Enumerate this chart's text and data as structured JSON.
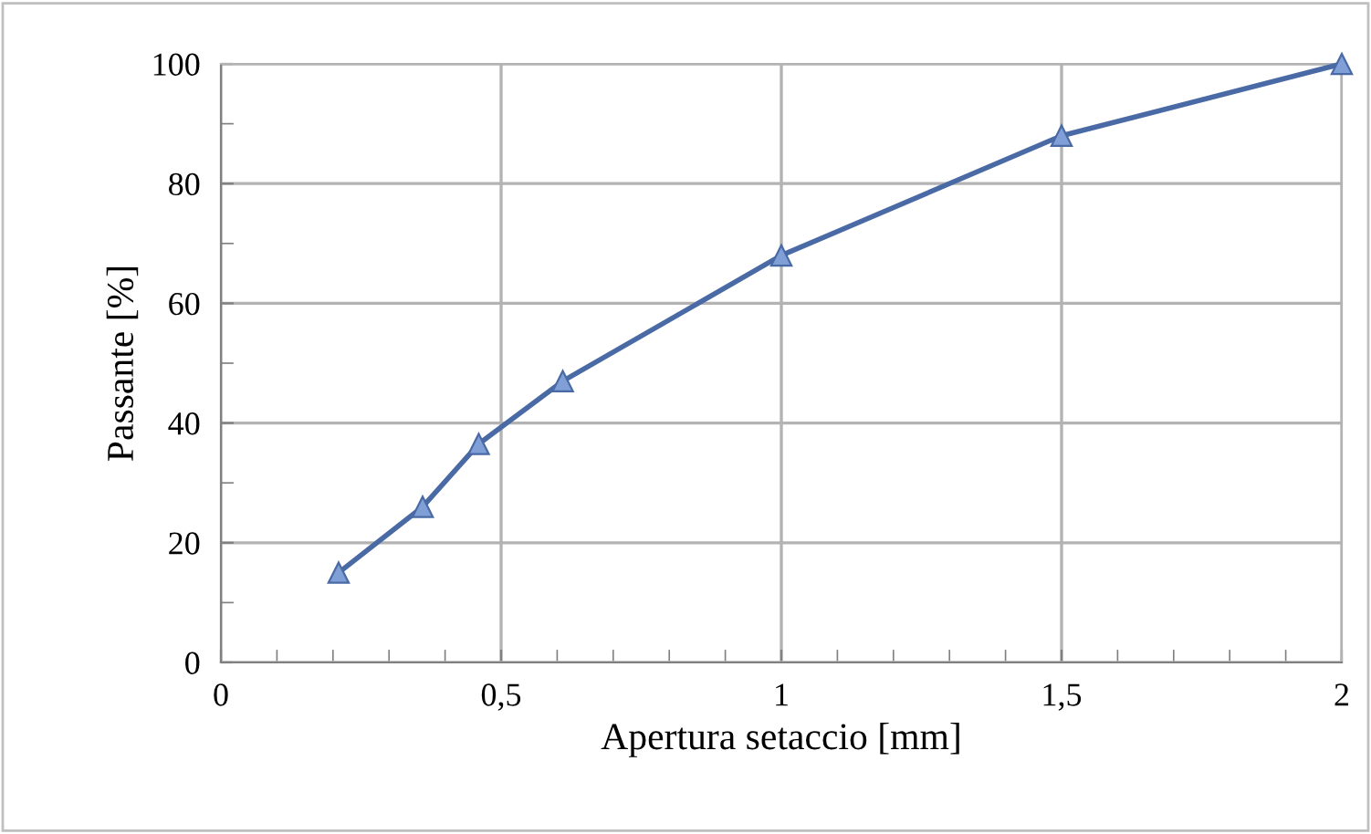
{
  "chart_data": {
    "type": "line",
    "xlabel": "Apertura setaccio [mm]",
    "ylabel": "Passante [%]",
    "series": [
      {
        "color": "#4a6aa5",
        "x": [
          0.21,
          0.36,
          0.46,
          0.61,
          1.0,
          1.5,
          2.0
        ],
        "values": [
          15,
          26,
          36.5,
          47,
          68,
          88,
          100
        ]
      }
    ],
    "xlim": [
      0,
      2
    ],
    "xticks": [
      0,
      {
        "value": 0.5,
        "label": "0,5"
      },
      1,
      {
        "value": 1.5,
        "label": "1,5"
      },
      2
    ],
    "ylim": [
      0,
      100
    ],
    "yticks": [
      0,
      20,
      40,
      60,
      80,
      100
    ],
    "grid": true,
    "marker": "triangle",
    "line_style": "solid",
    "legend": false
  }
}
